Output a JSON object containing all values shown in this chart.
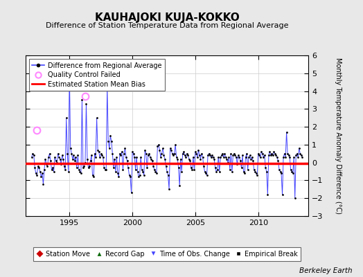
{
  "title": "KAUHAJOKI KUJA-KOKKO",
  "subtitle": "Difference of Station Temperature Data from Regional Average",
  "ylabel_right": "Monthly Temperature Anomaly Difference (°C)",
  "credit": "Berkeley Earth",
  "ylim": [
    -3,
    6
  ],
  "yticks": [
    -3,
    -2,
    -1,
    0,
    1,
    2,
    3,
    4,
    5,
    6
  ],
  "bias_value": -0.05,
  "background_color": "#e8e8e8",
  "plot_background": "#ffffff",
  "line_color": "#4444ff",
  "bias_color": "#ff0000",
  "qc_color": "#ff88ff",
  "marker_color": "#000000",
  "time_series": [
    1992.0,
    1992.083,
    1992.167,
    1992.25,
    1992.333,
    1992.417,
    1992.5,
    1992.583,
    1992.667,
    1992.75,
    1992.833,
    1992.917,
    1993.0,
    1993.083,
    1993.167,
    1993.25,
    1993.333,
    1993.417,
    1993.5,
    1993.583,
    1993.667,
    1993.75,
    1993.833,
    1993.917,
    1994.0,
    1994.083,
    1994.167,
    1994.25,
    1994.333,
    1994.417,
    1994.5,
    1994.583,
    1994.667,
    1994.75,
    1994.833,
    1994.917,
    1995.0,
    1995.083,
    1995.167,
    1995.25,
    1995.333,
    1995.417,
    1995.5,
    1995.583,
    1995.667,
    1995.75,
    1995.833,
    1995.917,
    1996.0,
    1996.083,
    1996.167,
    1996.25,
    1996.333,
    1996.417,
    1996.5,
    1996.583,
    1996.667,
    1996.75,
    1996.833,
    1996.917,
    1997.0,
    1997.083,
    1997.167,
    1997.25,
    1997.333,
    1997.417,
    1997.5,
    1997.583,
    1997.667,
    1997.75,
    1997.833,
    1997.917,
    1998.0,
    1998.083,
    1998.167,
    1998.25,
    1998.333,
    1998.417,
    1998.5,
    1998.583,
    1998.667,
    1998.75,
    1998.833,
    1998.917,
    1999.0,
    1999.083,
    1999.167,
    1999.25,
    1999.333,
    1999.417,
    1999.5,
    1999.583,
    1999.667,
    1999.75,
    1999.833,
    1999.917,
    2000.0,
    2000.083,
    2000.167,
    2000.25,
    2000.333,
    2000.417,
    2000.5,
    2000.583,
    2000.667,
    2000.75,
    2000.833,
    2000.917,
    2001.0,
    2001.083,
    2001.167,
    2001.25,
    2001.333,
    2001.417,
    2001.5,
    2001.583,
    2001.667,
    2001.75,
    2001.833,
    2001.917,
    2002.0,
    2002.083,
    2002.167,
    2002.25,
    2002.333,
    2002.417,
    2002.5,
    2002.583,
    2002.667,
    2002.75,
    2002.833,
    2002.917,
    2003.0,
    2003.083,
    2003.167,
    2003.25,
    2003.333,
    2003.417,
    2003.5,
    2003.583,
    2003.667,
    2003.75,
    2003.833,
    2003.917,
    2004.0,
    2004.083,
    2004.167,
    2004.25,
    2004.333,
    2004.417,
    2004.5,
    2004.583,
    2004.667,
    2004.75,
    2004.833,
    2004.917,
    2005.0,
    2005.083,
    2005.167,
    2005.25,
    2005.333,
    2005.417,
    2005.5,
    2005.583,
    2005.667,
    2005.75,
    2005.833,
    2005.917,
    2006.0,
    2006.083,
    2006.167,
    2006.25,
    2006.333,
    2006.417,
    2006.5,
    2006.583,
    2006.667,
    2006.75,
    2006.833,
    2006.917,
    2007.0,
    2007.083,
    2007.167,
    2007.25,
    2007.333,
    2007.417,
    2007.5,
    2007.583,
    2007.667,
    2007.75,
    2007.833,
    2007.917,
    2008.0,
    2008.083,
    2008.167,
    2008.25,
    2008.333,
    2008.417,
    2008.5,
    2008.583,
    2008.667,
    2008.75,
    2008.833,
    2008.917,
    2009.0,
    2009.083,
    2009.167,
    2009.25,
    2009.333,
    2009.417,
    2009.5,
    2009.583,
    2009.667,
    2009.75,
    2009.833,
    2009.917,
    2010.0,
    2010.083,
    2010.167,
    2010.25,
    2010.333,
    2010.417,
    2010.5,
    2010.583,
    2010.667,
    2010.75,
    2010.833,
    2010.917,
    2011.0,
    2011.083,
    2011.167,
    2011.25,
    2011.333,
    2011.417,
    2011.5,
    2011.583,
    2011.667,
    2011.75,
    2011.833,
    2011.917,
    2012.0,
    2012.083,
    2012.167,
    2012.25,
    2012.333,
    2012.417,
    2012.5,
    2012.583,
    2012.667,
    2012.75,
    2012.833,
    2012.917,
    2013.0,
    2013.083,
    2013.167,
    2013.25,
    2013.333,
    2013.417,
    2013.5
  ],
  "values": [
    0.3,
    0.5,
    0.4,
    -0.3,
    -0.6,
    -0.7,
    -0.2,
    -0.3,
    -0.5,
    -0.8,
    -0.6,
    -1.2,
    -0.4,
    0.2,
    -0.1,
    -0.2,
    0.3,
    0.5,
    0.1,
    -0.4,
    -0.3,
    -0.5,
    0.3,
    0.1,
    0.0,
    0.5,
    0.3,
    0.2,
    -0.1,
    0.4,
    0.2,
    -0.2,
    -0.4,
    2.5,
    0.5,
    -0.5,
    5.0,
    0.8,
    0.5,
    0.2,
    0.4,
    0.1,
    0.3,
    -0.3,
    0.4,
    -0.4,
    -0.5,
    -0.6,
    3.5,
    -0.3,
    -0.2,
    0.0,
    3.3,
    0.2,
    -0.3,
    -0.2,
    0.1,
    0.4,
    -0.7,
    -0.8,
    0.5,
    0.3,
    2.5,
    0.7,
    0.6,
    0.3,
    0.5,
    0.4,
    0.3,
    -0.3,
    -0.4,
    -0.4,
    4.3,
    1.2,
    0.8,
    1.5,
    1.2,
    0.5,
    -0.3,
    0.2,
    -0.5,
    0.3,
    -0.6,
    -0.8,
    0.5,
    0.4,
    0.6,
    -0.4,
    0.5,
    0.8,
    0.3,
    0.1,
    -0.3,
    -0.7,
    -0.8,
    -1.7,
    0.6,
    0.5,
    0.3,
    -0.4,
    0.3,
    -0.5,
    -0.8,
    -0.7,
    0.3,
    -0.4,
    -0.5,
    -0.7,
    0.7,
    0.5,
    -0.3,
    0.4,
    0.5,
    0.3,
    0.2,
    0.1,
    -0.2,
    -0.4,
    -0.5,
    -0.6,
    0.9,
    1.0,
    0.7,
    0.3,
    0.5,
    0.8,
    0.4,
    0.2,
    -0.2,
    -0.5,
    -0.7,
    -1.5,
    0.8,
    0.7,
    0.5,
    0.4,
    0.5,
    1.0,
    0.3,
    0.2,
    -0.3,
    -1.3,
    0.2,
    -0.5,
    0.5,
    0.6,
    0.4,
    0.3,
    0.5,
    0.4,
    0.2,
    0.1,
    -0.3,
    -0.4,
    0.3,
    -0.4,
    0.6,
    0.5,
    0.3,
    0.7,
    0.4,
    0.2,
    0.5,
    0.3,
    -0.2,
    -0.5,
    -0.6,
    -0.7,
    0.4,
    0.5,
    0.4,
    0.3,
    0.4,
    0.3,
    0.2,
    -0.3,
    -0.5,
    -0.4,
    0.3,
    -0.5,
    0.3,
    0.4,
    0.5,
    0.3,
    0.5,
    0.3,
    0.2,
    0.0,
    0.3,
    -0.4,
    0.5,
    -0.5,
    0.4,
    0.5,
    0.4,
    0.3,
    -0.1,
    0.4,
    0.3,
    0.1,
    -0.3,
    0.4,
    -0.5,
    -0.6,
    0.3,
    0.5,
    -0.4,
    0.3,
    0.4,
    0.2,
    0.3,
    0.1,
    -0.4,
    -0.5,
    -0.6,
    -0.7,
    0.5,
    0.4,
    0.3,
    0.6,
    0.5,
    0.3,
    0.4,
    -0.3,
    -0.5,
    -1.8,
    0.4,
    0.6,
    0.4,
    0.5,
    0.4,
    0.6,
    0.5,
    0.4,
    0.3,
    0.1,
    -0.4,
    -0.5,
    -0.6,
    -1.8,
    0.3,
    0.5,
    0.3,
    1.7,
    0.5,
    0.4,
    0.3,
    -0.4,
    -0.5,
    -0.6,
    0.3,
    -2.0,
    0.4,
    0.5,
    0.3,
    0.8,
    0.5,
    0.4,
    0.3
  ],
  "qc_failed_times": [
    1992.417,
    1996.25
  ],
  "qc_failed_values": [
    1.8,
    3.7
  ],
  "xlim": [
    1991.5,
    2014.0
  ],
  "xticks": [
    1995,
    2000,
    2005,
    2010
  ],
  "legend1_items": [
    "Difference from Regional Average",
    "Quality Control Failed",
    "Estimated Station Mean Bias"
  ],
  "legend2_items": [
    "Station Move",
    "Record Gap",
    "Time of Obs. Change",
    "Empirical Break"
  ]
}
